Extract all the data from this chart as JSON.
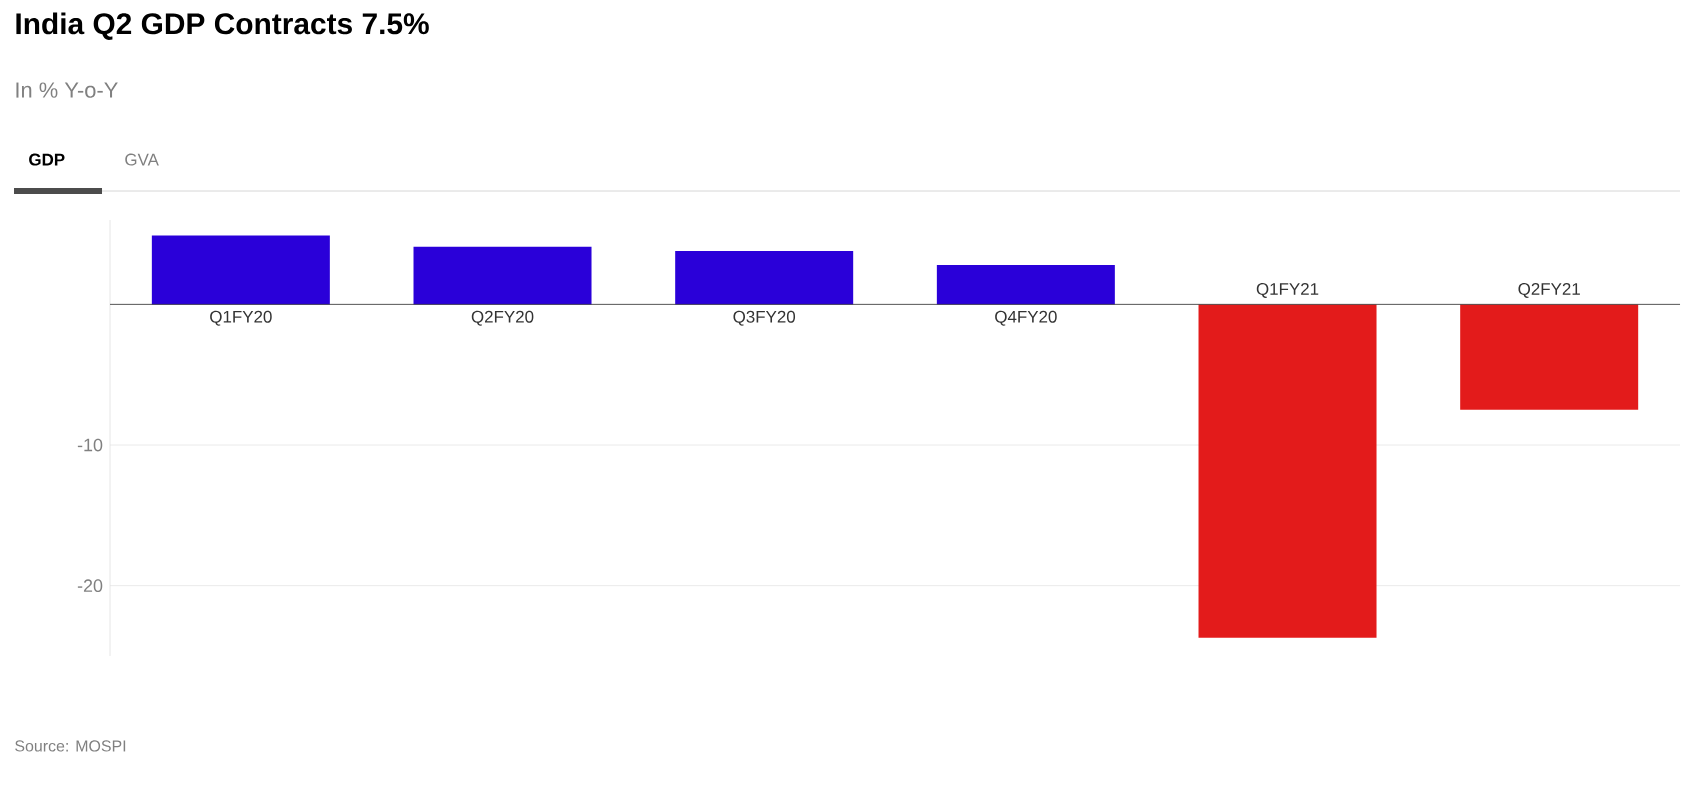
{
  "chart_data": {
    "type": "bar",
    "title": "India Q2 GDP Contracts 7.5%",
    "subtitle": "In % Y-o-Y",
    "categories": [
      "Q1FY20",
      "Q2FY20",
      "Q3FY20",
      "Q4FY20",
      "Q1FY21",
      "Q2FY21"
    ],
    "values": [
      4.9,
      4.1,
      3.8,
      2.8,
      -23.7,
      -7.5
    ],
    "colors": [
      "#2a00d9",
      "#2a00d9",
      "#2a00d9",
      "#2a00d9",
      "#e31b1b",
      "#e31b1b"
    ],
    "ylim": [
      -25,
      6
    ],
    "yticks": [
      {
        "value": 0,
        "label": null
      },
      -10,
      -20
    ],
    "grid": "y",
    "annotations": [
      "GDP",
      "GVA",
      "Source: MOSPI"
    ]
  }
}
